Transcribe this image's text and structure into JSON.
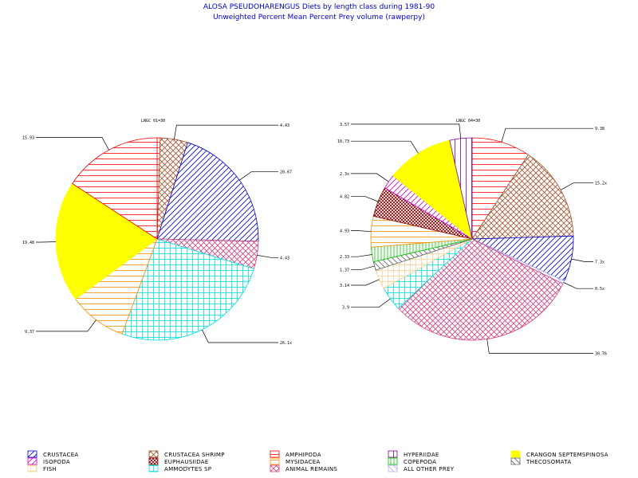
{
  "page": {
    "title_line1": "ALOSA PSEUDOHARENGUS  Diets by length class during  1981-90",
    "title_line2": "Unweighted  Percent  Mean  Percent  Prey   volume  (rawperpy)"
  },
  "styles": {
    "crustacea": {
      "color": "#0000cc",
      "pattern": "diag-up"
    },
    "crustacea_shrimp": {
      "color": "#a0522d",
      "pattern": "cross-diag"
    },
    "amphipoda": {
      "color": "#ff0000",
      "pattern": "horiz"
    },
    "hyperiidae": {
      "color": "#8000a0",
      "pattern": "vert"
    },
    "crangon": {
      "color": "#ffff00",
      "pattern": "solid"
    },
    "isopoda": {
      "color": "#cc00cc",
      "pattern": "diag-up"
    },
    "euphausiidae": {
      "color": "#800000",
      "pattern": "cross-diag-dense"
    },
    "mysidacea": {
      "color": "#ff8c00",
      "pattern": "horiz"
    },
    "copepoda": {
      "color": "#00cc00",
      "pattern": "vert-dense"
    },
    "thecosomata": {
      "color": "#606060",
      "pattern": "diag-down"
    },
    "fish": {
      "color": "#ffd090",
      "pattern": "grid"
    },
    "ammodytes": {
      "color": "#00e0e0",
      "pattern": "grid"
    },
    "animal_remains": {
      "color": "#d04080",
      "pattern": "cross-diag"
    },
    "all_other": {
      "color": "#b0b0ff",
      "pattern": "diag-down"
    }
  },
  "chart_data": [
    {
      "type": "pie",
      "title": "LNGC 01=30",
      "slices": [
        {
          "key": "amphipoda",
          "value": 0.5,
          "label": ""
        },
        {
          "key": "crustacea_shrimp",
          "value": 4.43,
          "label": "4.43"
        },
        {
          "key": "crustacea",
          "value": 20.67,
          "label": "20.67"
        },
        {
          "key": "animal_remains",
          "value": 4.43,
          "label": "4.43"
        },
        {
          "key": "ammodytes",
          "value": 26.1,
          "label": "26.1x"
        },
        {
          "key": "mysidacea",
          "value": 9.37,
          "label": "9.37"
        },
        {
          "key": "crangon",
          "value": 19.48,
          "label": "19.48"
        },
        {
          "key": "amphipoda",
          "value": 15.93,
          "label": "15.93"
        }
      ]
    },
    {
      "type": "pie",
      "title": "LNGC 04=30",
      "slices": [
        {
          "key": "amphipoda",
          "value": 9.38,
          "label": "9.38"
        },
        {
          "key": "crustacea_shrimp",
          "value": 15.2,
          "label": "15.2x"
        },
        {
          "key": "crustacea",
          "value": 7.3,
          "label": "7.3x"
        },
        {
          "key": "all_other",
          "value": 0.5,
          "label": "0.5x"
        },
        {
          "key": "animal_remains",
          "value": 30.76,
          "label": "30.76"
        },
        {
          "key": "ammodytes",
          "value": 3.9,
          "label": "3.9"
        },
        {
          "key": "fish",
          "value": 3.14,
          "label": "3.14"
        },
        {
          "key": "thecosomata",
          "value": 1.37,
          "label": "1.37"
        },
        {
          "key": "copepoda",
          "value": 2.33,
          "label": "2.33"
        },
        {
          "key": "mysidacea",
          "value": 4.93,
          "label": "4.93"
        },
        {
          "key": "euphausiidae",
          "value": 4.82,
          "label": "4.82"
        },
        {
          "key": "isopoda",
          "value": 2.3,
          "label": "2.3x"
        },
        {
          "key": "crangon",
          "value": 10.73,
          "label": "10.73"
        },
        {
          "key": "hyperiidae",
          "value": 3.57,
          "label": "3.57"
        }
      ]
    }
  ],
  "legend": [
    {
      "key": "crustacea",
      "label": "CRUSTACEA"
    },
    {
      "key": "crustacea_shrimp",
      "label": "CRUSTACEA  SHRIMP"
    },
    {
      "key": "amphipoda",
      "label": "AMPHIPODA"
    },
    {
      "key": "hyperiidae",
      "label": "HYPERIIDAE"
    },
    {
      "key": "crangon",
      "label": "CRANGON  SEPTEMSPINOSA"
    },
    {
      "key": "isopoda",
      "label": "ISOPODA"
    },
    {
      "key": "euphausiidae",
      "label": "EUPHAUSIIDAE"
    },
    {
      "key": "mysidacea",
      "label": "MYSIDACEA"
    },
    {
      "key": "copepoda",
      "label": "COPEPODA"
    },
    {
      "key": "thecosomata",
      "label": "THECOSOMATA"
    },
    {
      "key": "fish",
      "label": "FISH"
    },
    {
      "key": "ammodytes",
      "label": "AMMODYTES  SP"
    },
    {
      "key": "animal_remains",
      "label": "ANIMAL  REMAINS"
    },
    {
      "key": "all_other",
      "label": "ALL  OTHER  PREY"
    }
  ]
}
